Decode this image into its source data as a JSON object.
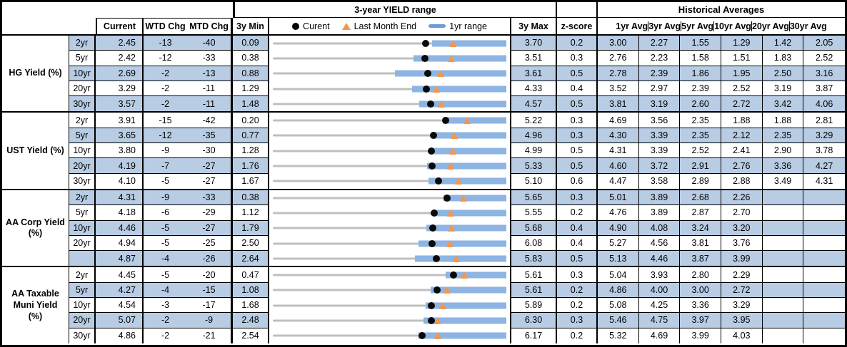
{
  "header": {
    "range_title": "3-year YIELD range",
    "historical_title": "Historical Averages",
    "col_current": "Current",
    "col_wtd": "WTD Chg",
    "col_mtd": "MTD Chg",
    "col_3ymin": "3y Min",
    "col_3ymax": "3y Max",
    "col_zscore": "z-score",
    "avg_cols": [
      "1yr Avg",
      "3yr Avg",
      "5yr Avg",
      "10yr Avg",
      "20yr Avg",
      "30yr Avg"
    ],
    "legend": {
      "current": "Curent",
      "last_month": "Last Month End",
      "range": "1yr range"
    }
  },
  "colors": {
    "row_shade": "#b8cce4",
    "range_bar": "#8eb4e3",
    "legend_bar": "#6f9bd4",
    "triangle": "#f79646",
    "track": "#bfbfbf",
    "border": "#000000"
  },
  "chart_data": {
    "type": "table",
    "title": "3-year YIELD range",
    "legend": [
      "Curent",
      "Last Month End",
      "1yr range"
    ],
    "groups": [
      {
        "label_lines": [
          "HG Yield (%)"
        ],
        "rows": [
          {
            "tenor": "2yr",
            "current": "2.45",
            "wtd": "-13",
            "mtd": "-40",
            "min": "0.09",
            "max": "3.70",
            "z": "0.2",
            "avgs": [
              "3.00",
              "2.27",
              "1.55",
              "1.29",
              "1.42",
              "2.05"
            ],
            "range": {
              "min": 0.09,
              "max": 3.7,
              "bar_lo": 2.55,
              "bar_hi": 3.7,
              "current": 2.45,
              "last_month": 2.87
            }
          },
          {
            "tenor": "5yr",
            "current": "2.42",
            "wtd": "-12",
            "mtd": "-33",
            "min": "0.38",
            "max": "3.51",
            "z": "0.3",
            "avgs": [
              "2.76",
              "2.23",
              "1.58",
              "1.51",
              "1.83",
              "2.52"
            ],
            "range": {
              "min": 0.38,
              "max": 3.51,
              "bar_lo": 2.27,
              "bar_hi": 3.51,
              "current": 2.42,
              "last_month": 2.77
            }
          },
          {
            "tenor": "10yr",
            "current": "2.69",
            "wtd": "-2",
            "mtd": "-13",
            "min": "0.88",
            "max": "3.61",
            "z": "0.5",
            "avgs": [
              "2.78",
              "2.39",
              "1.86",
              "1.95",
              "2.50",
              "3.16"
            ],
            "range": {
              "min": 0.88,
              "max": 3.61,
              "bar_lo": 2.31,
              "bar_hi": 3.61,
              "current": 2.69,
              "last_month": 2.84
            }
          },
          {
            "tenor": "20yr",
            "current": "3.29",
            "wtd": "-2",
            "mtd": "-11",
            "min": "1.29",
            "max": "4.33",
            "z": "0.4",
            "avgs": [
              "3.52",
              "2.97",
              "2.39",
              "2.52",
              "3.19",
              "3.87"
            ],
            "range": {
              "min": 1.29,
              "max": 4.33,
              "bar_lo": 3.1,
              "bar_hi": 4.33,
              "current": 3.29,
              "last_month": 3.42
            }
          },
          {
            "tenor": "30yr",
            "current": "3.57",
            "wtd": "-2",
            "mtd": "-11",
            "min": "1.48",
            "max": "4.57",
            "z": "0.5",
            "avgs": [
              "3.81",
              "3.19",
              "2.60",
              "2.72",
              "3.42",
              "4.06"
            ],
            "range": {
              "min": 1.48,
              "max": 4.57,
              "bar_lo": 3.42,
              "bar_hi": 4.57,
              "current": 3.57,
              "last_month": 3.71
            }
          }
        ]
      },
      {
        "label_lines": [
          "UST Yield (%)"
        ],
        "rows": [
          {
            "tenor": "2yr",
            "current": "3.91",
            "wtd": "-15",
            "mtd": "-42",
            "min": "0.20",
            "max": "5.22",
            "z": "0.3",
            "avgs": [
              "4.69",
              "3.56",
              "2.35",
              "1.88",
              "1.88",
              "2.81"
            ],
            "range": {
              "min": 0.2,
              "max": 5.22,
              "bar_lo": 3.85,
              "bar_hi": 5.22,
              "current": 3.91,
              "last_month": 4.38
            }
          },
          {
            "tenor": "5yr",
            "current": "3.65",
            "wtd": "-12",
            "mtd": "-35",
            "min": "0.77",
            "max": "4.96",
            "z": "0.3",
            "avgs": [
              "4.30",
              "3.39",
              "2.35",
              "2.12",
              "2.35",
              "3.29"
            ],
            "range": {
              "min": 0.77,
              "max": 4.96,
              "bar_lo": 3.62,
              "bar_hi": 4.96,
              "current": 3.65,
              "last_month": 4.03
            }
          },
          {
            "tenor": "10yr",
            "current": "3.80",
            "wtd": "-9",
            "mtd": "-30",
            "min": "1.28",
            "max": "4.99",
            "z": "0.5",
            "avgs": [
              "4.31",
              "3.39",
              "2.52",
              "2.41",
              "2.90",
              "3.78"
            ],
            "range": {
              "min": 1.28,
              "max": 4.99,
              "bar_lo": 3.78,
              "bar_hi": 4.99,
              "current": 3.8,
              "last_month": 4.14
            }
          },
          {
            "tenor": "20yr",
            "current": "4.19",
            "wtd": "-7",
            "mtd": "-27",
            "min": "1.76",
            "max": "5.33",
            "z": "0.5",
            "avgs": [
              "4.60",
              "3.72",
              "2.91",
              "2.76",
              "3.36",
              "4.27"
            ],
            "range": {
              "min": 1.76,
              "max": 5.33,
              "bar_lo": 4.12,
              "bar_hi": 5.33,
              "current": 4.19,
              "last_month": 4.48
            }
          },
          {
            "tenor": "30yr",
            "current": "4.10",
            "wtd": "-5",
            "mtd": "-27",
            "min": "1.67",
            "max": "5.10",
            "z": "0.6",
            "avgs": [
              "4.47",
              "3.58",
              "2.89",
              "2.88",
              "3.49",
              "4.31"
            ],
            "range": {
              "min": 1.67,
              "max": 5.1,
              "bar_lo": 3.96,
              "bar_hi": 5.1,
              "current": 4.1,
              "last_month": 4.4
            }
          }
        ]
      },
      {
        "label_lines": [
          "AA Corp Yield",
          "(%)"
        ],
        "rows": [
          {
            "tenor": "2yr",
            "current": "4.31",
            "wtd": "-9",
            "mtd": "-33",
            "min": "0.38",
            "max": "5.65",
            "z": "0.3",
            "avgs": [
              "5.01",
              "3.89",
              "2.68",
              "2.26",
              "",
              ""
            ],
            "range": {
              "min": 0.38,
              "max": 5.65,
              "bar_lo": 4.23,
              "bar_hi": 5.65,
              "current": 4.31,
              "last_month": 4.69
            }
          },
          {
            "tenor": "5yr",
            "current": "4.18",
            "wtd": "-6",
            "mtd": "-29",
            "min": "1.12",
            "max": "5.55",
            "z": "0.2",
            "avgs": [
              "4.76",
              "3.89",
              "2.87",
              "2.70",
              "",
              ""
            ],
            "range": {
              "min": 1.12,
              "max": 5.55,
              "bar_lo": 4.15,
              "bar_hi": 5.55,
              "current": 4.18,
              "last_month": 4.49
            }
          },
          {
            "tenor": "10yr",
            "current": "4.46",
            "wtd": "-5",
            "mtd": "-27",
            "min": "1.79",
            "max": "5.68",
            "z": "0.4",
            "avgs": [
              "4.90",
              "4.08",
              "3.24",
              "3.20",
              "",
              ""
            ],
            "range": {
              "min": 1.79,
              "max": 5.68,
              "bar_lo": 4.35,
              "bar_hi": 5.68,
              "current": 4.46,
              "last_month": 4.76
            }
          },
          {
            "tenor": "20yr",
            "current": "4.94",
            "wtd": "-5",
            "mtd": "-25",
            "min": "2.50",
            "max": "6.08",
            "z": "0.4",
            "avgs": [
              "5.27",
              "4.56",
              "3.81",
              "3.76",
              "",
              ""
            ],
            "range": {
              "min": 2.5,
              "max": 6.08,
              "bar_lo": 4.73,
              "bar_hi": 6.08,
              "current": 4.94,
              "last_month": 5.22
            }
          },
          {
            "tenor": "",
            "current": "4.87",
            "wtd": "-4",
            "mtd": "-26",
            "min": "2.64",
            "max": "5.83",
            "z": "0.5",
            "avgs": [
              "5.13",
              "4.46",
              "3.87",
              "3.99",
              "",
              ""
            ],
            "range": {
              "min": 2.64,
              "max": 5.83,
              "bar_lo": 4.58,
              "bar_hi": 5.83,
              "current": 4.87,
              "last_month": 5.15
            }
          }
        ]
      },
      {
        "label_lines": [
          "AA Taxable",
          "Muni Yield",
          "(%)"
        ],
        "rows": [
          {
            "tenor": "2yr",
            "current": "4.45",
            "wtd": "-5",
            "mtd": "-20",
            "min": "0.47",
            "max": "5.61",
            "z": "0.3",
            "avgs": [
              "5.04",
              "3.93",
              "2.80",
              "2.29",
              "",
              ""
            ],
            "range": {
              "min": 0.47,
              "max": 5.61,
              "bar_lo": 4.28,
              "bar_hi": 5.61,
              "current": 4.45,
              "last_month": 4.68
            }
          },
          {
            "tenor": "5yr",
            "current": "4.27",
            "wtd": "-4",
            "mtd": "-15",
            "min": "1.08",
            "max": "5.61",
            "z": "0.2",
            "avgs": [
              "4.86",
              "4.00",
              "3.00",
              "2.72",
              "",
              ""
            ],
            "range": {
              "min": 1.08,
              "max": 5.61,
              "bar_lo": 4.14,
              "bar_hi": 5.61,
              "current": 4.27,
              "last_month": 4.46
            }
          },
          {
            "tenor": "10yr",
            "current": "4.54",
            "wtd": "-3",
            "mtd": "-17",
            "min": "1.68",
            "max": "5.89",
            "z": "0.2",
            "avgs": [
              "5.08",
              "4.25",
              "3.36",
              "3.29",
              "",
              ""
            ],
            "range": {
              "min": 1.68,
              "max": 5.89,
              "bar_lo": 4.43,
              "bar_hi": 5.89,
              "current": 4.54,
              "last_month": 4.74
            }
          },
          {
            "tenor": "20yr",
            "current": "5.07",
            "wtd": "-2",
            "mtd": "-9",
            "min": "2.48",
            "max": "6.30",
            "z": "0.3",
            "avgs": [
              "5.46",
              "4.75",
              "3.97",
              "3.95",
              "",
              ""
            ],
            "range": {
              "min": 2.48,
              "max": 6.3,
              "bar_lo": 4.94,
              "bar_hi": 6.3,
              "current": 5.07,
              "last_month": 5.18
            }
          },
          {
            "tenor": "30yr",
            "current": "4.86",
            "wtd": "-2",
            "mtd": "-21",
            "min": "2.54",
            "max": "6.17",
            "z": "0.2",
            "avgs": [
              "5.32",
              "4.69",
              "3.99",
              "4.03",
              "",
              ""
            ],
            "range": {
              "min": 2.54,
              "max": 6.17,
              "bar_lo": 4.81,
              "bar_hi": 6.17,
              "current": 4.86,
              "last_month": 5.1
            }
          }
        ]
      }
    ]
  }
}
